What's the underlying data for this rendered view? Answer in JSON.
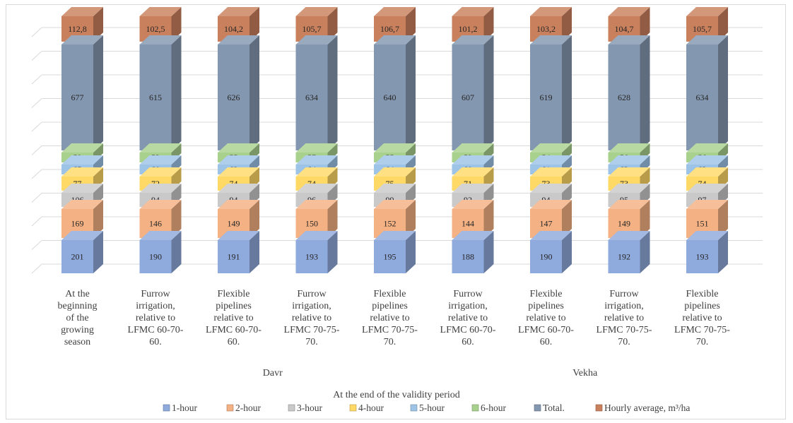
{
  "chart_data": {
    "type": "bar",
    "stacked": true,
    "three_d": true,
    "title": "",
    "xlabel": "At the end of the validity period",
    "ylabel": "",
    "grid": true,
    "legend_position": "bottom",
    "categories": [
      [
        "At the",
        "beginning",
        "of the",
        "growing",
        "season"
      ],
      [
        "Furrow",
        "irrigation,",
        "relative to",
        "LFMC 60-70-",
        "60."
      ],
      [
        "Flexible",
        "pipelines",
        "relative to",
        "LFMC 60-70-",
        "60."
      ],
      [
        "Furrow",
        "irrigation,",
        "relative to",
        "LFMC 70-75-",
        "70."
      ],
      [
        "Flexible",
        "pipelines",
        "relative to",
        "LFMC 70-75-",
        "70."
      ],
      [
        "Furrow",
        "irrigation,",
        "relative to",
        "LFMC 60-70-",
        "60."
      ],
      [
        "Flexible",
        "pipelines",
        "relative to",
        "LFMC 60-70-",
        "60."
      ],
      [
        "Furrow",
        "irrigation,",
        "relative to",
        "LFMC 70-75-",
        "70."
      ],
      [
        "Flexible",
        "pipelines",
        "relative to",
        "LFMC 70-75-",
        "70."
      ]
    ],
    "groups": [
      {
        "label": "Davr",
        "categories": [
          1,
          2,
          3,
          4
        ]
      },
      {
        "label": "Vekha",
        "categories": [
          5,
          6,
          7,
          8
        ]
      }
    ],
    "series": [
      {
        "name": "1-hour",
        "color": "#8faadc",
        "values": [
          201,
          190,
          191,
          193,
          195,
          188,
          190,
          192,
          193
        ]
      },
      {
        "name": "2-hour",
        "color": "#f4b183",
        "values": [
          169,
          146,
          149,
          150,
          152,
          144,
          147,
          149,
          151
        ]
      },
      {
        "name": "3-hour",
        "color": "#c9c9c9",
        "values": [
          106,
          94,
          94,
          96,
          99,
          92,
          94,
          95,
          97
        ]
      },
      {
        "name": "4-hour",
        "color": "#ffd966",
        "values": [
          77,
          72,
          74,
          74,
          75,
          71,
          73,
          73,
          74
        ]
      },
      {
        "name": "5-hour",
        "color": "#9dc3e6",
        "values": [
          65,
          60,
          62,
          64,
          64,
          60,
          61,
          63,
          63
        ]
      },
      {
        "name": "6-hour",
        "color": "#a9d18e",
        "values": [
          59,
          53,
          55,
          57,
          55,
          52,
          54,
          56,
          56
        ]
      },
      {
        "name": "Total.",
        "color": "#8497b0",
        "values": [
          677,
          615,
          626,
          634,
          640,
          607,
          619,
          628,
          634
        ]
      },
      {
        "name": "Hourly average, m³/ha",
        "color": "#c9805d",
        "values": [
          "112,8",
          "102,5",
          "104,2",
          "105,7",
          "106,7",
          "101,2",
          "103,2",
          "104,7",
          "105,7"
        ]
      }
    ]
  }
}
